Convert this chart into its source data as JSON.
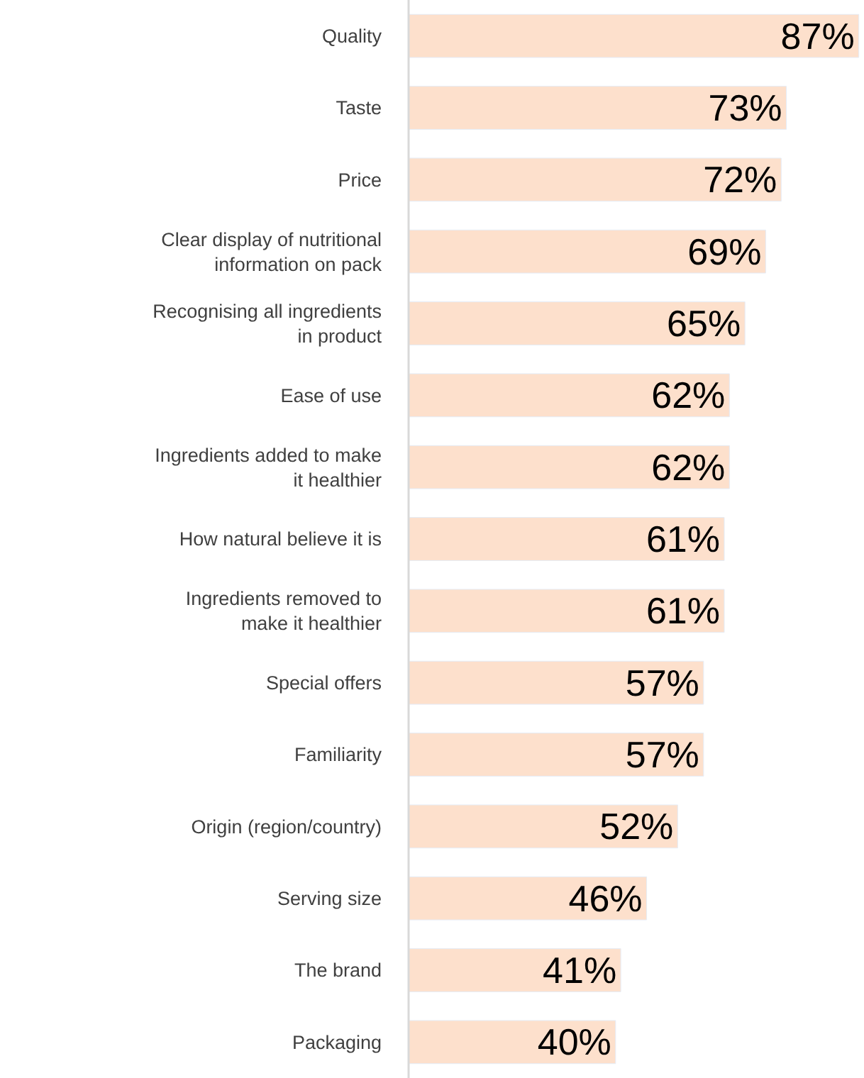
{
  "chart_data": {
    "type": "bar",
    "orientation": "horizontal",
    "categories": [
      "Quality",
      "Taste",
      "Price",
      "Clear display of nutritional\ninformation on pack",
      "Recognising all ingredients\nin product",
      "Ease of use",
      "Ingredients added to make\nit healthier",
      "How natural believe it is",
      "Ingredients removed to\nmake it healthier",
      "Special offers",
      "Familiarity",
      "Origin (region/country)",
      "Serving size",
      "The brand",
      "Packaging"
    ],
    "values": [
      87,
      73,
      72,
      69,
      65,
      62,
      62,
      61,
      61,
      57,
      57,
      52,
      46,
      41,
      40
    ],
    "value_labels": [
      "87%",
      "73%",
      "72%",
      "69%",
      "65%",
      "62%",
      "62%",
      "61%",
      "61%",
      "57%",
      "57%",
      "52%",
      "46%",
      "41%",
      "40%"
    ],
    "color": "#fde0cc",
    "xlim": [
      0,
      88
    ],
    "tick_labels": "y"
  }
}
